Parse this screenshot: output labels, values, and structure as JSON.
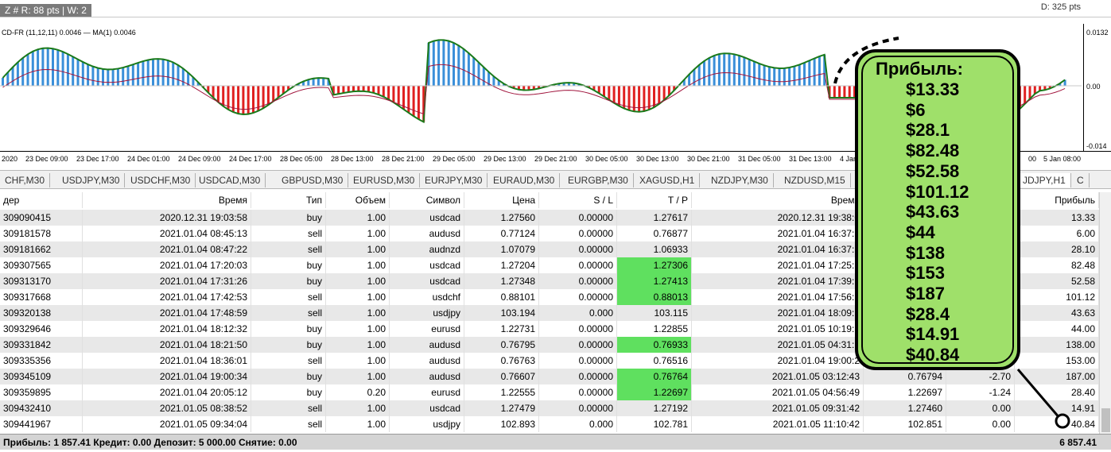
{
  "top": {
    "info": "Z # R: 88 pts | W: 2",
    "right": "D: 325 pts"
  },
  "indicator": {
    "label": "CD-FR (11,12,11) 0.0046 — MA(1) 0.0046",
    "y_top": "0.0132",
    "y_zero": "0.00",
    "y_bottom": "-0.014",
    "x_labels": [
      "2020",
      "23 Dec 09:00",
      "23 Dec 17:00",
      "24 Dec 01:00",
      "24 Dec 09:00",
      "24 Dec 17:00",
      "28 Dec 05:00",
      "28 Dec 13:00",
      "28 Dec 21:00",
      "29 Dec 05:00",
      "29 Dec 13:00",
      "29 Dec 21:00",
      "30 Dec 05:00",
      "30 Dec 13:00",
      "30 Dec 21:00",
      "31 Dec 05:00",
      "31 Dec 13:00",
      "4 Jan",
      "00",
      "5 Jan 08:00"
    ]
  },
  "tabs": [
    "CHF,M30",
    "USDJPY,M30",
    "USDCHF,M30",
    "USDCAD,M30",
    "GBPUSD,M30",
    "EURUSD,M30",
    "EURJPY,M30",
    "EURAUD,M30",
    "EURGBP,M30",
    "XAGUSD,H1",
    "NZDJPY,M30",
    "NZDUSD,M15",
    "",
    "JDJPY,H1",
    "C"
  ],
  "table": {
    "headers": [
      "дер",
      "Время",
      "Тип",
      "Объем",
      "Символ",
      "Цена",
      "S / L",
      "T / P",
      "Время",
      "",
      "",
      "Прибыль"
    ],
    "rows": [
      [
        "309090415",
        "2020.12.31 19:03:58",
        "buy",
        "1.00",
        "usdcad",
        "1.27560",
        "0.00000",
        "1.27617",
        "2020.12.31 19:38:0",
        "",
        "",
        "13.33"
      ],
      [
        "309181578",
        "2021.01.04 08:45:13",
        "sell",
        "1.00",
        "audusd",
        "0.77124",
        "0.00000",
        "0.76877",
        "2021.01.04 16:37:5",
        "",
        "",
        "6.00"
      ],
      [
        "309181662",
        "2021.01.04 08:47:22",
        "sell",
        "1.00",
        "audnzd",
        "1.07079",
        "0.00000",
        "1.06933",
        "2021.01.04 16:37:5",
        "",
        "",
        "28.10"
      ],
      [
        "309307565",
        "2021.01.04 17:20:03",
        "buy",
        "1.00",
        "usdcad",
        "1.27204",
        "0.00000",
        "1.27306",
        "2021.01.04 17:25:3",
        "",
        "",
        "82.48"
      ],
      [
        "309313170",
        "2021.01.04 17:31:26",
        "buy",
        "1.00",
        "usdcad",
        "1.27348",
        "0.00000",
        "1.27413",
        "2021.01.04 17:39:1",
        "",
        "",
        "52.58"
      ],
      [
        "309317668",
        "2021.01.04 17:42:53",
        "sell",
        "1.00",
        "usdchf",
        "0.88101",
        "0.00000",
        "0.88013",
        "2021.01.04 17:56:5",
        "",
        "",
        "101.12"
      ],
      [
        "309320138",
        "2021.01.04 17:48:59",
        "sell",
        "1.00",
        "usdjpy",
        "103.194",
        "0.000",
        "103.115",
        "2021.01.04 18:09:5",
        "",
        "",
        "43.63"
      ],
      [
        "309329646",
        "2021.01.04 18:12:32",
        "buy",
        "1.00",
        "eurusd",
        "1.22731",
        "0.00000",
        "1.22855",
        "2021.01.05 10:19:3",
        "",
        "",
        "44.00"
      ],
      [
        "309331842",
        "2021.01.04 18:21:50",
        "buy",
        "1.00",
        "audusd",
        "0.76795",
        "0.00000",
        "0.76933",
        "2021.01.05 04:31:1",
        "",
        "",
        "138.00"
      ],
      [
        "309335356",
        "2021.01.04 18:36:01",
        "sell",
        "1.00",
        "audusd",
        "0.76763",
        "0.00000",
        "0.76516",
        "2021.01.04 19:00:2",
        "",
        "",
        "153.00"
      ],
      [
        "309345109",
        "2021.01.04 19:00:34",
        "buy",
        "1.00",
        "audusd",
        "0.76607",
        "0.00000",
        "0.76764",
        "2021.01.05 03:12:43",
        "0.76794",
        "-2.70",
        "187.00"
      ],
      [
        "309359895",
        "2021.01.04 20:05:12",
        "buy",
        "0.20",
        "eurusd",
        "1.22555",
        "0.00000",
        "1.22697",
        "2021.01.05 04:56:49",
        "1.22697",
        "-1.24",
        "28.40"
      ],
      [
        "309432410",
        "2021.01.05 08:38:52",
        "sell",
        "1.00",
        "usdcad",
        "1.27479",
        "0.00000",
        "1.27192",
        "2021.01.05 09:31:42",
        "1.27460",
        "0.00",
        "14.91"
      ],
      [
        "309441967",
        "2021.01.05 09:34:04",
        "sell",
        "1.00",
        "usdjpy",
        "102.893",
        "0.000",
        "102.781",
        "2021.01.05 11:10:42",
        "102.851",
        "0.00",
        "40.84"
      ]
    ],
    "green_tp_rows": [
      3,
      4,
      5,
      8,
      10,
      11
    ]
  },
  "status": {
    "left": "Прибыль: 1 857.41  Кредит: 0.00  Депозит: 5 000.00  Снятие: 0.00",
    "right": "6 857.41"
  },
  "callout": {
    "title": "Прибыль:",
    "items": [
      "$13.33",
      "$6",
      "$28.1",
      "$82.48",
      "$52.58",
      "$101.12",
      "$43.63",
      "$44",
      "$138",
      "$153",
      "$187",
      "$28.4",
      "$14.91",
      "$40.84"
    ]
  }
}
